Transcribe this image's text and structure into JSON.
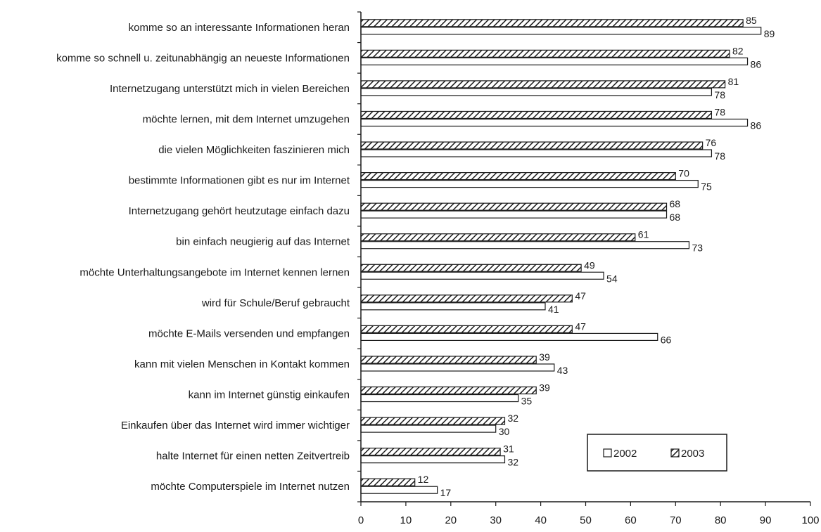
{
  "chart_data": {
    "type": "bar",
    "orientation": "horizontal",
    "xlim": [
      0,
      100
    ],
    "x_ticks": [
      "0",
      "10",
      "20",
      "30",
      "40",
      "50",
      "60",
      "70",
      "80",
      "90",
      "100"
    ],
    "grid": false,
    "legend_position": "bottom-right",
    "categories": [
      "komme so an interessante Informationen heran",
      "komme so schnell u. zeitunabhängig an neueste Informationen",
      "Internetzugang unterstützt mich in vielen Bereichen",
      "möchte lernen, mit dem Internet umzugehen",
      "die vielen Möglichkeiten faszinieren mich",
      "bestimmte Informationen gibt es nur im Internet",
      "Internetzugang gehört heutzutage einfach dazu",
      "bin einfach neugierig auf das Internet",
      "möchte Unterhaltungsangebote im Internet kennen lernen",
      "wird für Schule/Beruf gebraucht",
      "möchte E-Mails versenden und empfangen",
      "kann mit vielen Menschen in Kontakt kommen",
      "kann im Internet günstig einkaufen",
      "Einkaufen über das Internet wird immer wichtiger",
      "halte Internet für einen netten Zeitvertreib",
      "möchte Computerspiele im Internet nutzen"
    ],
    "series": [
      {
        "name": "2002",
        "fill": "#ffffff",
        "pattern": "none",
        "values": [
          89,
          86,
          78,
          86,
          78,
          75,
          68,
          73,
          54,
          41,
          66,
          43,
          35,
          30,
          32,
          17
        ]
      },
      {
        "name": "2003",
        "fill": "#ffffff",
        "pattern": "diagonal-hatch",
        "values": [
          85,
          82,
          81,
          78,
          76,
          70,
          68,
          61,
          49,
          47,
          47,
          39,
          39,
          32,
          31,
          12
        ]
      }
    ]
  }
}
